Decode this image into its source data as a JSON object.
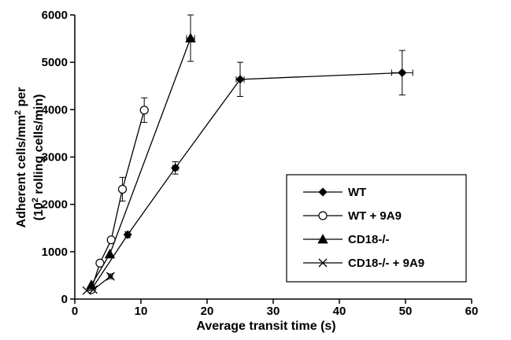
{
  "chart_data": {
    "type": "scatter",
    "xlabel": "Average transit time (s)",
    "ylabel_line1": "Adherent cells/mm",
    "ylabel_sup1": "2",
    "ylabel_line1_tail": " per",
    "ylabel_line2_head": "(10",
    "ylabel_sup2": "2",
    "ylabel_line2_tail": " rolling cells/min)",
    "xlim": [
      0,
      60
    ],
    "ylim": [
      0,
      6000
    ],
    "x_ticks": [
      "0",
      "10",
      "20",
      "30",
      "40",
      "50",
      "60"
    ],
    "y_ticks": [
      "0",
      "1000",
      "2000",
      "3000",
      "4000",
      "5000",
      "6000"
    ],
    "grid": false,
    "legend_position": "bottom-right",
    "series": [
      {
        "name": "WT",
        "marker": "diamond",
        "points": [
          {
            "x": 2.5,
            "y": 200,
            "yerr": 0,
            "xerr": 0
          },
          {
            "x": 8.0,
            "y": 1360,
            "yerr": 60,
            "xerr": 0.3
          },
          {
            "x": 15.2,
            "y": 2770,
            "yerr": 130,
            "xerr": 0.4
          },
          {
            "x": 25.0,
            "y": 4640,
            "yerr": 360,
            "xerr": 0.6
          },
          {
            "x": 49.5,
            "y": 4780,
            "yerr": 470,
            "xerr": 1.6
          }
        ]
      },
      {
        "name": "WT + 9A9",
        "marker": "circle-open",
        "points": [
          {
            "x": 2.5,
            "y": 200,
            "yerr": 0,
            "xerr": 0
          },
          {
            "x": 3.8,
            "y": 760,
            "yerr": 0,
            "xerr": 0
          },
          {
            "x": 5.5,
            "y": 1250,
            "yerr": 0,
            "xerr": 0
          },
          {
            "x": 7.2,
            "y": 2320,
            "yerr": 250,
            "xerr": 0
          },
          {
            "x": 10.5,
            "y": 3990,
            "yerr": 260,
            "xerr": 0
          }
        ]
      },
      {
        "name": "CD18-/-",
        "marker": "triangle",
        "points": [
          {
            "x": 2.5,
            "y": 300,
            "yerr": 0,
            "xerr": 0
          },
          {
            "x": 5.3,
            "y": 950,
            "yerr": 0,
            "xerr": 0
          },
          {
            "x": 17.5,
            "y": 5510,
            "yerr": 490,
            "xerr": 0.6
          }
        ]
      },
      {
        "name": "CD18-/- + 9A9",
        "marker": "x",
        "points": [
          {
            "x": 1.8,
            "y": 180,
            "yerr": 0,
            "xerr": 0
          },
          {
            "x": 2.8,
            "y": 200,
            "yerr": 0,
            "xerr": 0
          },
          {
            "x": 5.4,
            "y": 480,
            "yerr": 50,
            "xerr": 0.3
          }
        ]
      }
    ]
  }
}
